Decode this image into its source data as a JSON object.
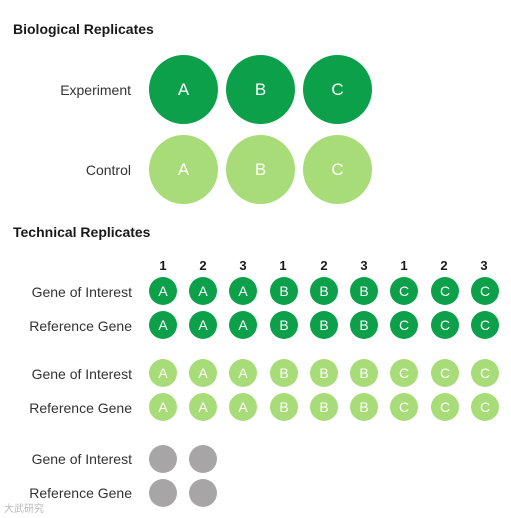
{
  "colors": {
    "dark": "#0da04a",
    "light": "#a8dc78",
    "gray": "#a7a5a6",
    "text_on_circle": "#ffffff"
  },
  "biological": {
    "title": "Biological Replicates",
    "rows": [
      {
        "label": "Experiment",
        "shade": "dark",
        "circles": [
          "A",
          "B",
          "C"
        ]
      },
      {
        "label": "Control",
        "shade": "light",
        "circles": [
          "A",
          "B",
          "C"
        ]
      }
    ]
  },
  "technical": {
    "title": "Technical Replicates",
    "columns": [
      "1",
      "2",
      "3",
      "1",
      "2",
      "3",
      "1",
      "2",
      "3"
    ],
    "groups": [
      {
        "shade": "dark",
        "rows": [
          {
            "label": "Gene of Interest",
            "circles": [
              "A",
              "A",
              "A",
              "B",
              "B",
              "B",
              "C",
              "C",
              "C"
            ]
          },
          {
            "label": "Reference Gene",
            "circles": [
              "A",
              "A",
              "A",
              "B",
              "B",
              "B",
              "C",
              "C",
              "C"
            ]
          }
        ]
      },
      {
        "shade": "light",
        "rows": [
          {
            "label": "Gene of Interest",
            "circles": [
              "A",
              "A",
              "A",
              "B",
              "B",
              "B",
              "C",
              "C",
              "C"
            ]
          },
          {
            "label": "Reference Gene",
            "circles": [
              "A",
              "A",
              "A",
              "B",
              "B",
              "B",
              "C",
              "C",
              "C"
            ]
          }
        ]
      },
      {
        "shade": "gray",
        "rows": [
          {
            "label": "Gene of Interest",
            "circles": [
              "",
              ""
            ]
          },
          {
            "label": "Reference Gene",
            "circles": [
              "",
              ""
            ]
          }
        ]
      }
    ]
  },
  "watermark": "大武研究"
}
